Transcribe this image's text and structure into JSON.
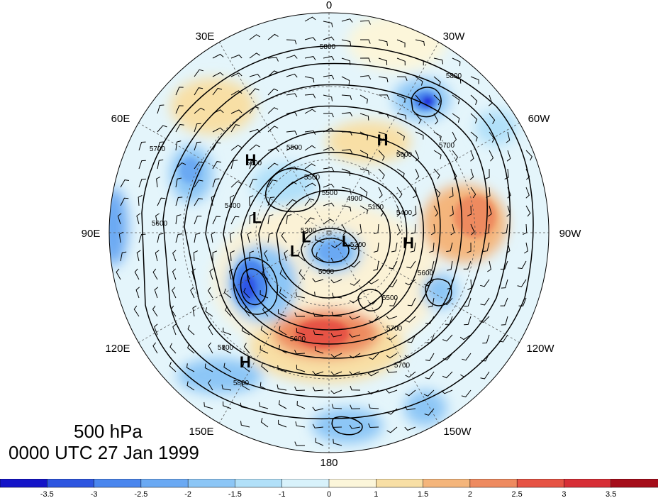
{
  "map": {
    "level_label": "500 hPa",
    "time_label": "0000 UTC 27 Jan 1999",
    "longitude_labels": {
      "n0": "0",
      "n30w": "30W",
      "n60w": "60W",
      "n90w": "90W",
      "n120w": "120W",
      "n150w": "150W",
      "n180": "180",
      "n150e": "150E",
      "n120e": "120E",
      "n90e": "90E",
      "n60e": "60E",
      "n30e": "30E"
    },
    "pressure_centers": [
      {
        "label": "H",
        "lon_deg": -30,
        "colat_deg": 52
      },
      {
        "label": "H",
        "lon_deg": 47,
        "colat_deg": 52
      },
      {
        "label": "H",
        "lon_deg": -97,
        "colat_deg": 40
      },
      {
        "label": "H",
        "lon_deg": 147,
        "colat_deg": 70
      },
      {
        "label": "L",
        "lon_deg": 100,
        "colat_deg": 12
      },
      {
        "label": "L",
        "lon_deg": 78,
        "colat_deg": 37
      },
      {
        "label": "L",
        "lon_deg": -115,
        "colat_deg": 10
      },
      {
        "label": "L",
        "lon_deg": 118,
        "colat_deg": 20
      }
    ],
    "contour_labels": [
      "5800",
      "5800",
      "5700",
      "5700",
      "5600",
      "5600",
      "5500",
      "5500",
      "5500",
      "5400",
      "5400",
      "5300",
      "5200",
      "5100",
      "5000",
      "4900",
      "5600",
      "5700",
      "5800",
      "5600",
      "5700",
      "5500",
      "5800",
      "5600"
    ],
    "anomaly_colors": [
      "#1f1fd9",
      "#2e55e6",
      "#4a86ee",
      "#6aa9f3",
      "#8cc6f6",
      "#b1e0f9",
      "#d8f2fb",
      "#fcf6da",
      "#f8dfa5",
      "#f4b57b",
      "#ee8a5f",
      "#e65344",
      "#d72e36",
      "#b3101c"
    ]
  },
  "colorbar": {
    "colors": [
      "#1414c8",
      "#2d55e0",
      "#4a86ee",
      "#6aa9f3",
      "#8cc6f6",
      "#b1e0f9",
      "#d8f2fb",
      "#fcf6da",
      "#f8dfa5",
      "#f4b57b",
      "#ee8a5f",
      "#e65344",
      "#d72e36",
      "#a50d1a"
    ],
    "tick_labels": [
      "-3.5",
      "-3",
      "-2.5",
      "-2",
      "-1.5",
      "-1",
      "0",
      "1",
      "1.5",
      "2",
      "2.5",
      "3",
      "3.5"
    ]
  }
}
